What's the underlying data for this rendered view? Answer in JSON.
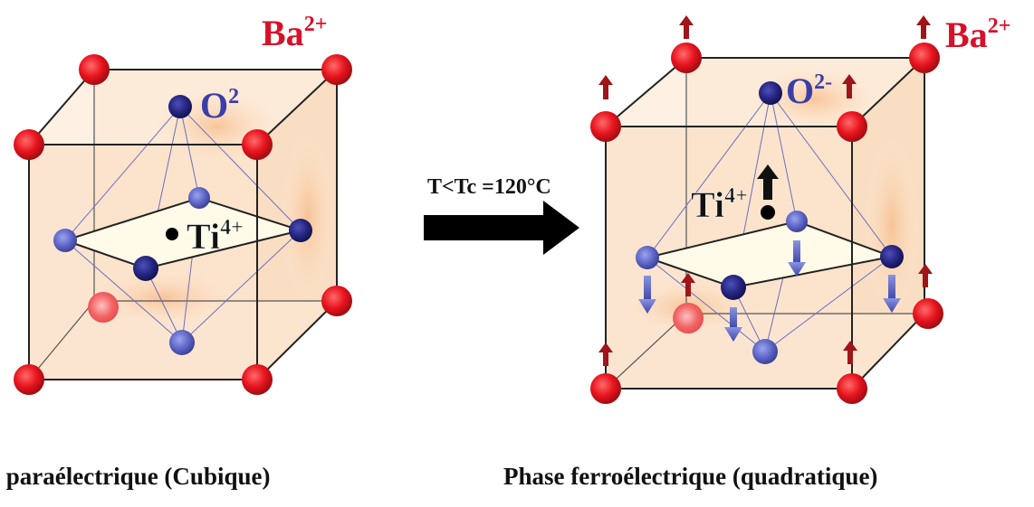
{
  "left_structure": {
    "cation_label": "Ba",
    "cation_charge": "2+",
    "anion_label": "O",
    "anion_charge": "2",
    "center_label": "Ti",
    "center_charge": "4+",
    "caption": "ase paraélectrique (Cubique)"
  },
  "transition": {
    "label": "T<Tc =120°C"
  },
  "right_structure": {
    "cation_label": "Ba",
    "cation_charge": "2+",
    "anion_label": "O",
    "anion_charge": "2-",
    "center_label": "Ti",
    "center_charge": "4+",
    "caption": "Phase ferroélectrique (quadratique)"
  },
  "colors": {
    "barium": "#e8141e",
    "oxygen": "#24237e",
    "oxygen_light": "#5b63c4",
    "label_blue": "#3b3ea8",
    "label_red": "#d8102a",
    "shade": "#f6b985",
    "arrow": "#000000"
  }
}
